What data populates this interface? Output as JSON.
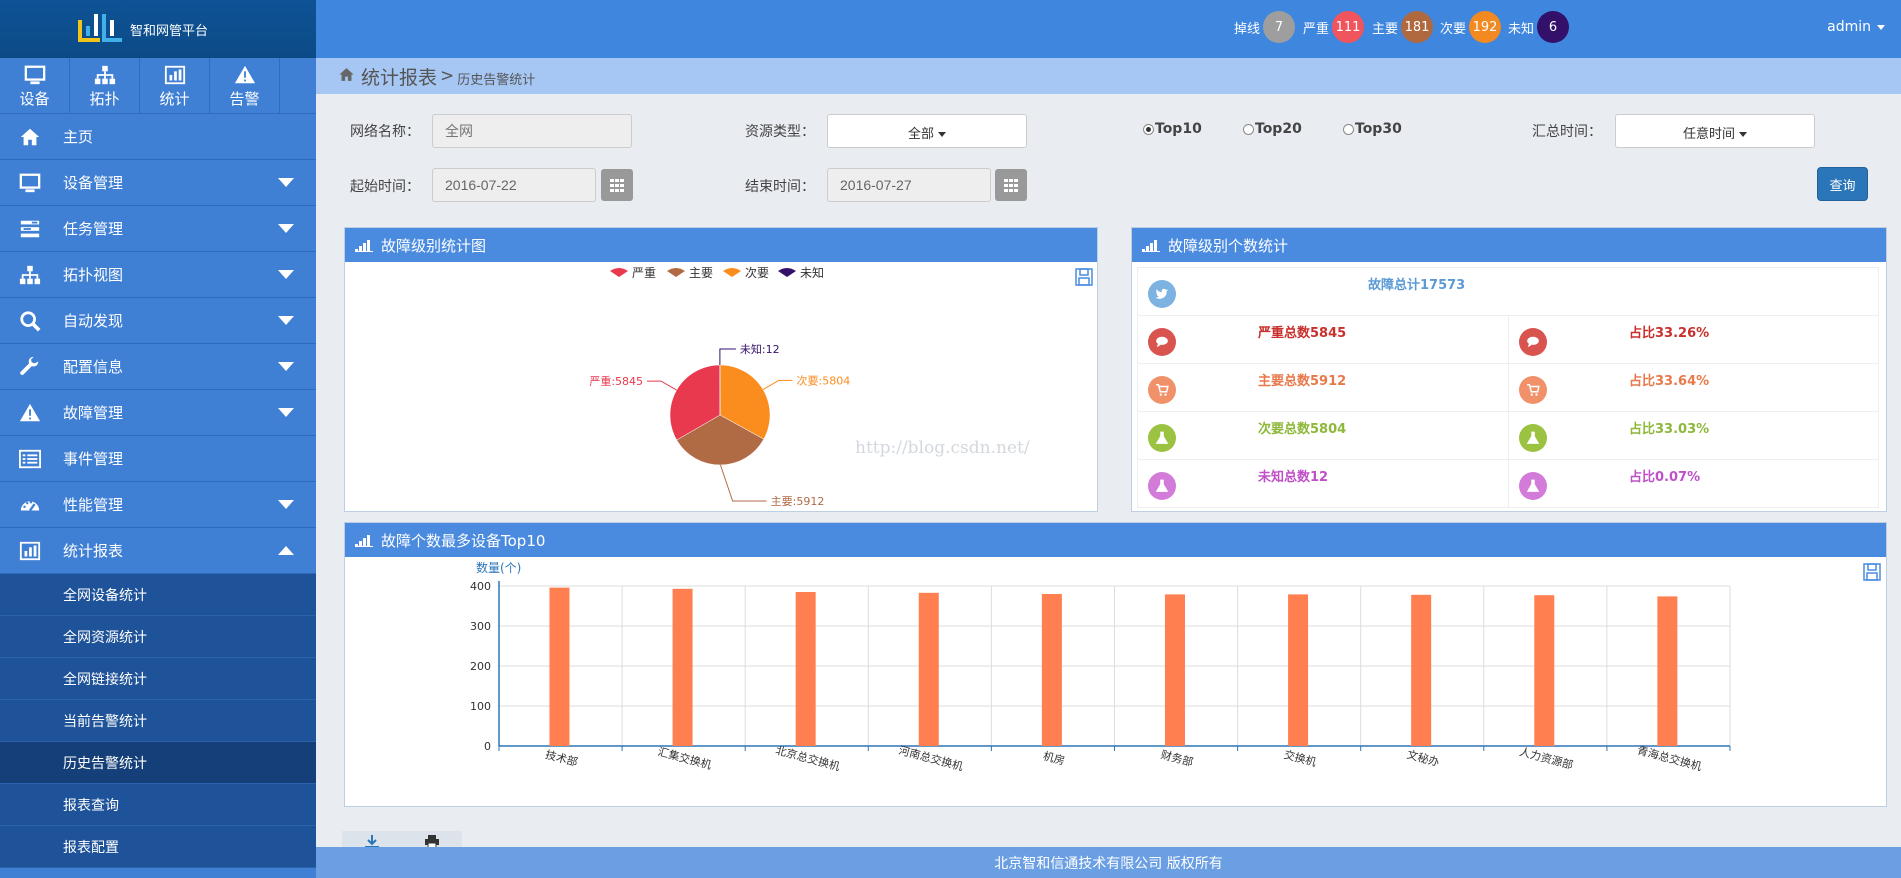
{
  "app": {
    "title": "智和网管平台"
  },
  "quick_nav": [
    {
      "label": "设备",
      "icon": "monitor-icon"
    },
    {
      "label": "拓扑",
      "icon": "sitemap-icon"
    },
    {
      "label": "统计",
      "icon": "bar-chart-icon"
    },
    {
      "label": "告警",
      "icon": "warning-icon"
    }
  ],
  "menu": [
    {
      "label": "主页",
      "icon": "home-icon",
      "caret": "none"
    },
    {
      "label": "设备管理",
      "icon": "monitor-icon",
      "caret": "down"
    },
    {
      "label": "任务管理",
      "icon": "tasks-icon",
      "caret": "down"
    },
    {
      "label": "拓扑视图",
      "icon": "sitemap-icon",
      "caret": "down"
    },
    {
      "label": "自动发现",
      "icon": "search-icon",
      "caret": "down"
    },
    {
      "label": "配置信息",
      "icon": "wrench-icon",
      "caret": "down"
    },
    {
      "label": "故障管理",
      "icon": "warning-icon",
      "caret": "down"
    },
    {
      "label": "事件管理",
      "icon": "list-icon",
      "caret": "none"
    },
    {
      "label": "性能管理",
      "icon": "dashboard-icon",
      "caret": "down"
    },
    {
      "label": "统计报表",
      "icon": "bar-chart-icon",
      "caret": "up"
    }
  ],
  "submenu": [
    {
      "label": "全网设备统计",
      "active": false
    },
    {
      "label": "全网资源统计",
      "active": false
    },
    {
      "label": "全网链接统计",
      "active": false
    },
    {
      "label": "当前告警统计",
      "active": false
    },
    {
      "label": "历史告警统计",
      "active": true
    },
    {
      "label": "报表查询",
      "active": false
    },
    {
      "label": "报表配置",
      "active": false
    }
  ],
  "top_badges": [
    {
      "label": "掉线",
      "count": "7",
      "color": "#9e9e9e"
    },
    {
      "label": "严重",
      "count": "111",
      "color": "#f0555e"
    },
    {
      "label": "主要",
      "count": "181",
      "color": "#b0683e"
    },
    {
      "label": "次要",
      "count": "192",
      "color": "#f28a21"
    },
    {
      "label": "未知",
      "count": "6",
      "color": "#33116b"
    }
  ],
  "user": {
    "name": "admin"
  },
  "breadcrumb": {
    "section": "统计报表",
    "separator": ">",
    "page": "历史告警统计"
  },
  "filters": {
    "network_label": "网络名称：",
    "network_placeholder": "全网",
    "resource_label": "资源类型：",
    "resource_value": "全部",
    "top_options": [
      "Top10",
      "Top20",
      "Top30"
    ],
    "top_selected": 0,
    "summary_label": "汇总时间：",
    "summary_value": "任意时间",
    "start_label": "起始时间：",
    "start_value": "2016-07-22",
    "end_label": "结束时间：",
    "end_value": "2016-07-27",
    "query_label": "查询"
  },
  "pie_panel": {
    "title": "故障级别统计图",
    "legend": [
      {
        "name": "严重",
        "color": "#e8394e"
      },
      {
        "name": "主要",
        "color": "#b06b45"
      },
      {
        "name": "次要",
        "color": "#fb8c1e"
      },
      {
        "name": "未知",
        "color": "#33116b"
      }
    ],
    "labels": [
      "严重:5845",
      "主要:5912",
      "次要:5804",
      "未知:12"
    ]
  },
  "stats_panel": {
    "title": "故障级别个数统计",
    "total": "故障总计17573",
    "rows": [
      {
        "count": "严重总数5845",
        "ratio": "占比33.26%",
        "color": "#c9302c",
        "bg": "#d9534f",
        "icon": "comment-icon"
      },
      {
        "count": "主要总数5912",
        "ratio": "占比33.64%",
        "color": "#e8794a",
        "bg": "#f0916a",
        "icon": "cart-icon"
      },
      {
        "count": "次要总数5804",
        "ratio": "占比33.03%",
        "color": "#8db83a",
        "bg": "#9bc241",
        "icon": "flask-icon"
      },
      {
        "count": "未知总数12",
        "ratio": "占比0.07%",
        "color": "#c050c8",
        "bg": "#d37bd9",
        "icon": "flask-icon"
      }
    ],
    "total_icon_bg": "#7cb3e0"
  },
  "bar_panel": {
    "title": "故障个数最多设备Top10"
  },
  "chart_data": [
    {
      "type": "pie",
      "title": "故障级别统计图",
      "series": [
        {
          "name": "严重",
          "value": 5845
        },
        {
          "name": "主要",
          "value": 5912
        },
        {
          "name": "次要",
          "value": 5804
        },
        {
          "name": "未知",
          "value": 12
        }
      ],
      "legend": "top-center"
    },
    {
      "type": "bar",
      "title": "故障个数最多设备Top10",
      "ylabel": "数量(个)",
      "categories": [
        "技术部",
        "汇集交换机",
        "北京总交换机",
        "河南总交换机",
        "机房",
        "财务部",
        "交换机",
        "文秘办",
        "人力资源部",
        "青海总交换机"
      ],
      "values": [
        396,
        393,
        385,
        383,
        380,
        379,
        379,
        378,
        377,
        374
      ],
      "ylim": [
        0,
        400
      ],
      "yticks": [
        0,
        100,
        200,
        300,
        400
      ],
      "color": "#ff7f50",
      "grid": true
    }
  ],
  "watermark": "http://blog.csdn.net/",
  "toolbar": {
    "export_label": "导出",
    "print_label": "打印"
  },
  "footer": {
    "text": "北京智和信通技术有限公司 版权所有"
  }
}
